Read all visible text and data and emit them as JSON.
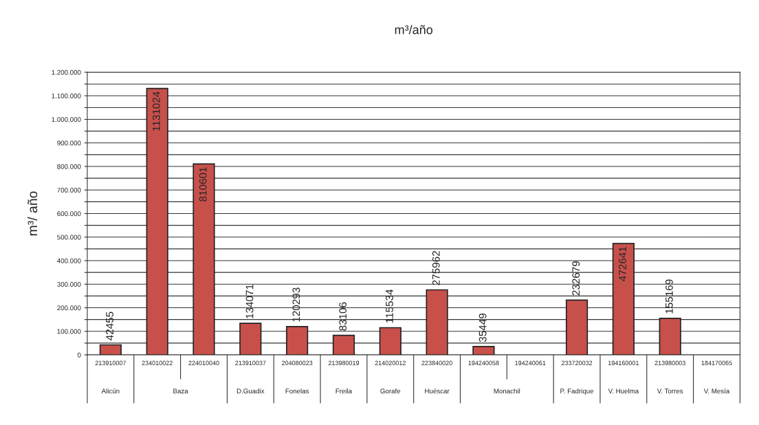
{
  "chart_data": {
    "type": "bar",
    "title": "m³/año",
    "ylabel": "m³/ año",
    "categories": [
      "213910007",
      "234010022",
      "224010040",
      "213910037",
      "204080023",
      "213980019",
      "214020012",
      "223840020",
      "194240058",
      "194240061",
      "233720032",
      "194160001",
      "213980003",
      "184170065"
    ],
    "values": [
      42455,
      1131024,
      810601,
      134071,
      120293,
      83106,
      115534,
      275962,
      35449,
      null,
      232679,
      472641,
      155169,
      null
    ],
    "color": "#c8504b",
    "data_labels": true,
    "ylim": [
      0,
      1200000
    ],
    "yticks": [
      {
        "value": 0,
        "label": "0"
      },
      {
        "value": 50000,
        "label": null
      },
      {
        "value": 100000,
        "label": "100.000"
      },
      {
        "value": 150000,
        "label": null
      },
      {
        "value": 200000,
        "label": "200.000"
      },
      {
        "value": 250000,
        "label": null
      },
      {
        "value": 300000,
        "label": "300.000"
      },
      {
        "value": 350000,
        "label": null
      },
      {
        "value": 400000,
        "label": "400.000"
      },
      {
        "value": 450000,
        "label": null
      },
      {
        "value": 500000,
        "label": "500.000"
      },
      {
        "value": 550000,
        "label": null
      },
      {
        "value": 600000,
        "label": "600.000"
      },
      {
        "value": 650000,
        "label": null
      },
      {
        "value": 700000,
        "label": "700.000"
      },
      {
        "value": 750000,
        "label": null
      },
      {
        "value": 800000,
        "label": "800.000"
      },
      {
        "value": 850000,
        "label": null
      },
      {
        "value": 900000,
        "label": "900.000"
      },
      {
        "value": 950000,
        "label": null
      },
      {
        "value": 1000000,
        "label": "1.000.000"
      },
      {
        "value": 1050000,
        "label": null
      },
      {
        "value": 1100000,
        "label": "1.100.000"
      },
      {
        "value": 1150000,
        "label": null
      },
      {
        "value": 1200000,
        "label": "1.200.000"
      }
    ],
    "grid": "y",
    "annotations": [
      "Alicún",
      "Baza",
      "D.Guadix",
      "Fonelas",
      "Freila",
      "Gorafe",
      "Huéscar",
      "Monachil",
      "P. Fadrique",
      "V. Huelma",
      "V. Torres",
      "V. Mesía"
    ]
  }
}
